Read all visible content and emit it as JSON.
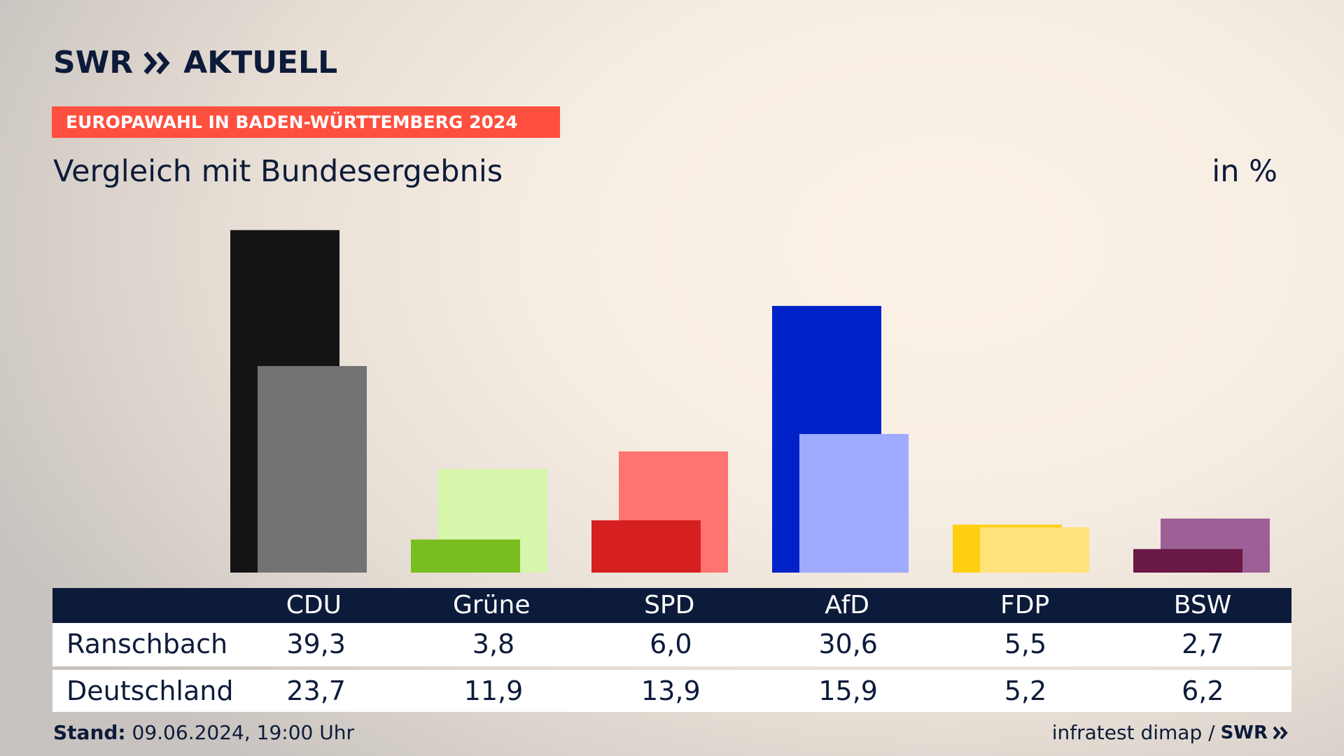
{
  "brand": {
    "logo_text": "SWR AKTUELL",
    "logo_left": "SWR",
    "logo_right": "AKTUELL"
  },
  "banner": {
    "text": "EUROPAWAHL IN BADEN-WÜRTTEMBERG 2024",
    "color": "#ff4f3f"
  },
  "subtitle": "Vergleich mit Bundesergebnis",
  "unit": "in %",
  "chart_data": {
    "type": "bar",
    "categories": [
      "CDU",
      "Grüne",
      "SPD",
      "AfD",
      "FDP",
      "BSW"
    ],
    "series": [
      {
        "name": "Ranschbach",
        "values": [
          39.3,
          3.8,
          6.0,
          30.6,
          5.5,
          2.7
        ]
      },
      {
        "name": "Deutschland",
        "values": [
          23.7,
          11.9,
          13.9,
          15.9,
          5.2,
          6.2
        ]
      }
    ],
    "colors_primary": [
      "#141414",
      "#78be20",
      "#d61f1f",
      "#0022c9",
      "#ffcf10",
      "#6a1845"
    ],
    "colors_secondary": [
      "#737373",
      "#d7f5ab",
      "#ff7470",
      "#9eabff",
      "#ffe37a",
      "#9c5f96"
    ],
    "ylim": [
      0,
      40
    ]
  },
  "table": {
    "headers": [
      "CDU",
      "Grüne",
      "SPD",
      "AfD",
      "FDP",
      "BSW"
    ],
    "rows": [
      {
        "label": "Ranschbach",
        "values": [
          "39,3",
          "3,8",
          "6,0",
          "30,6",
          "5,5",
          "2,7"
        ]
      },
      {
        "label": "Deutschland",
        "values": [
          "23,7",
          "11,9",
          "13,9",
          "15,9",
          "5,2",
          "6,2"
        ]
      }
    ]
  },
  "footer": {
    "stand_label": "Stand:",
    "stand_value": "09.06.2024, 19:00 Uhr",
    "source": "infratest dimap /",
    "source_logo": "SWR"
  }
}
